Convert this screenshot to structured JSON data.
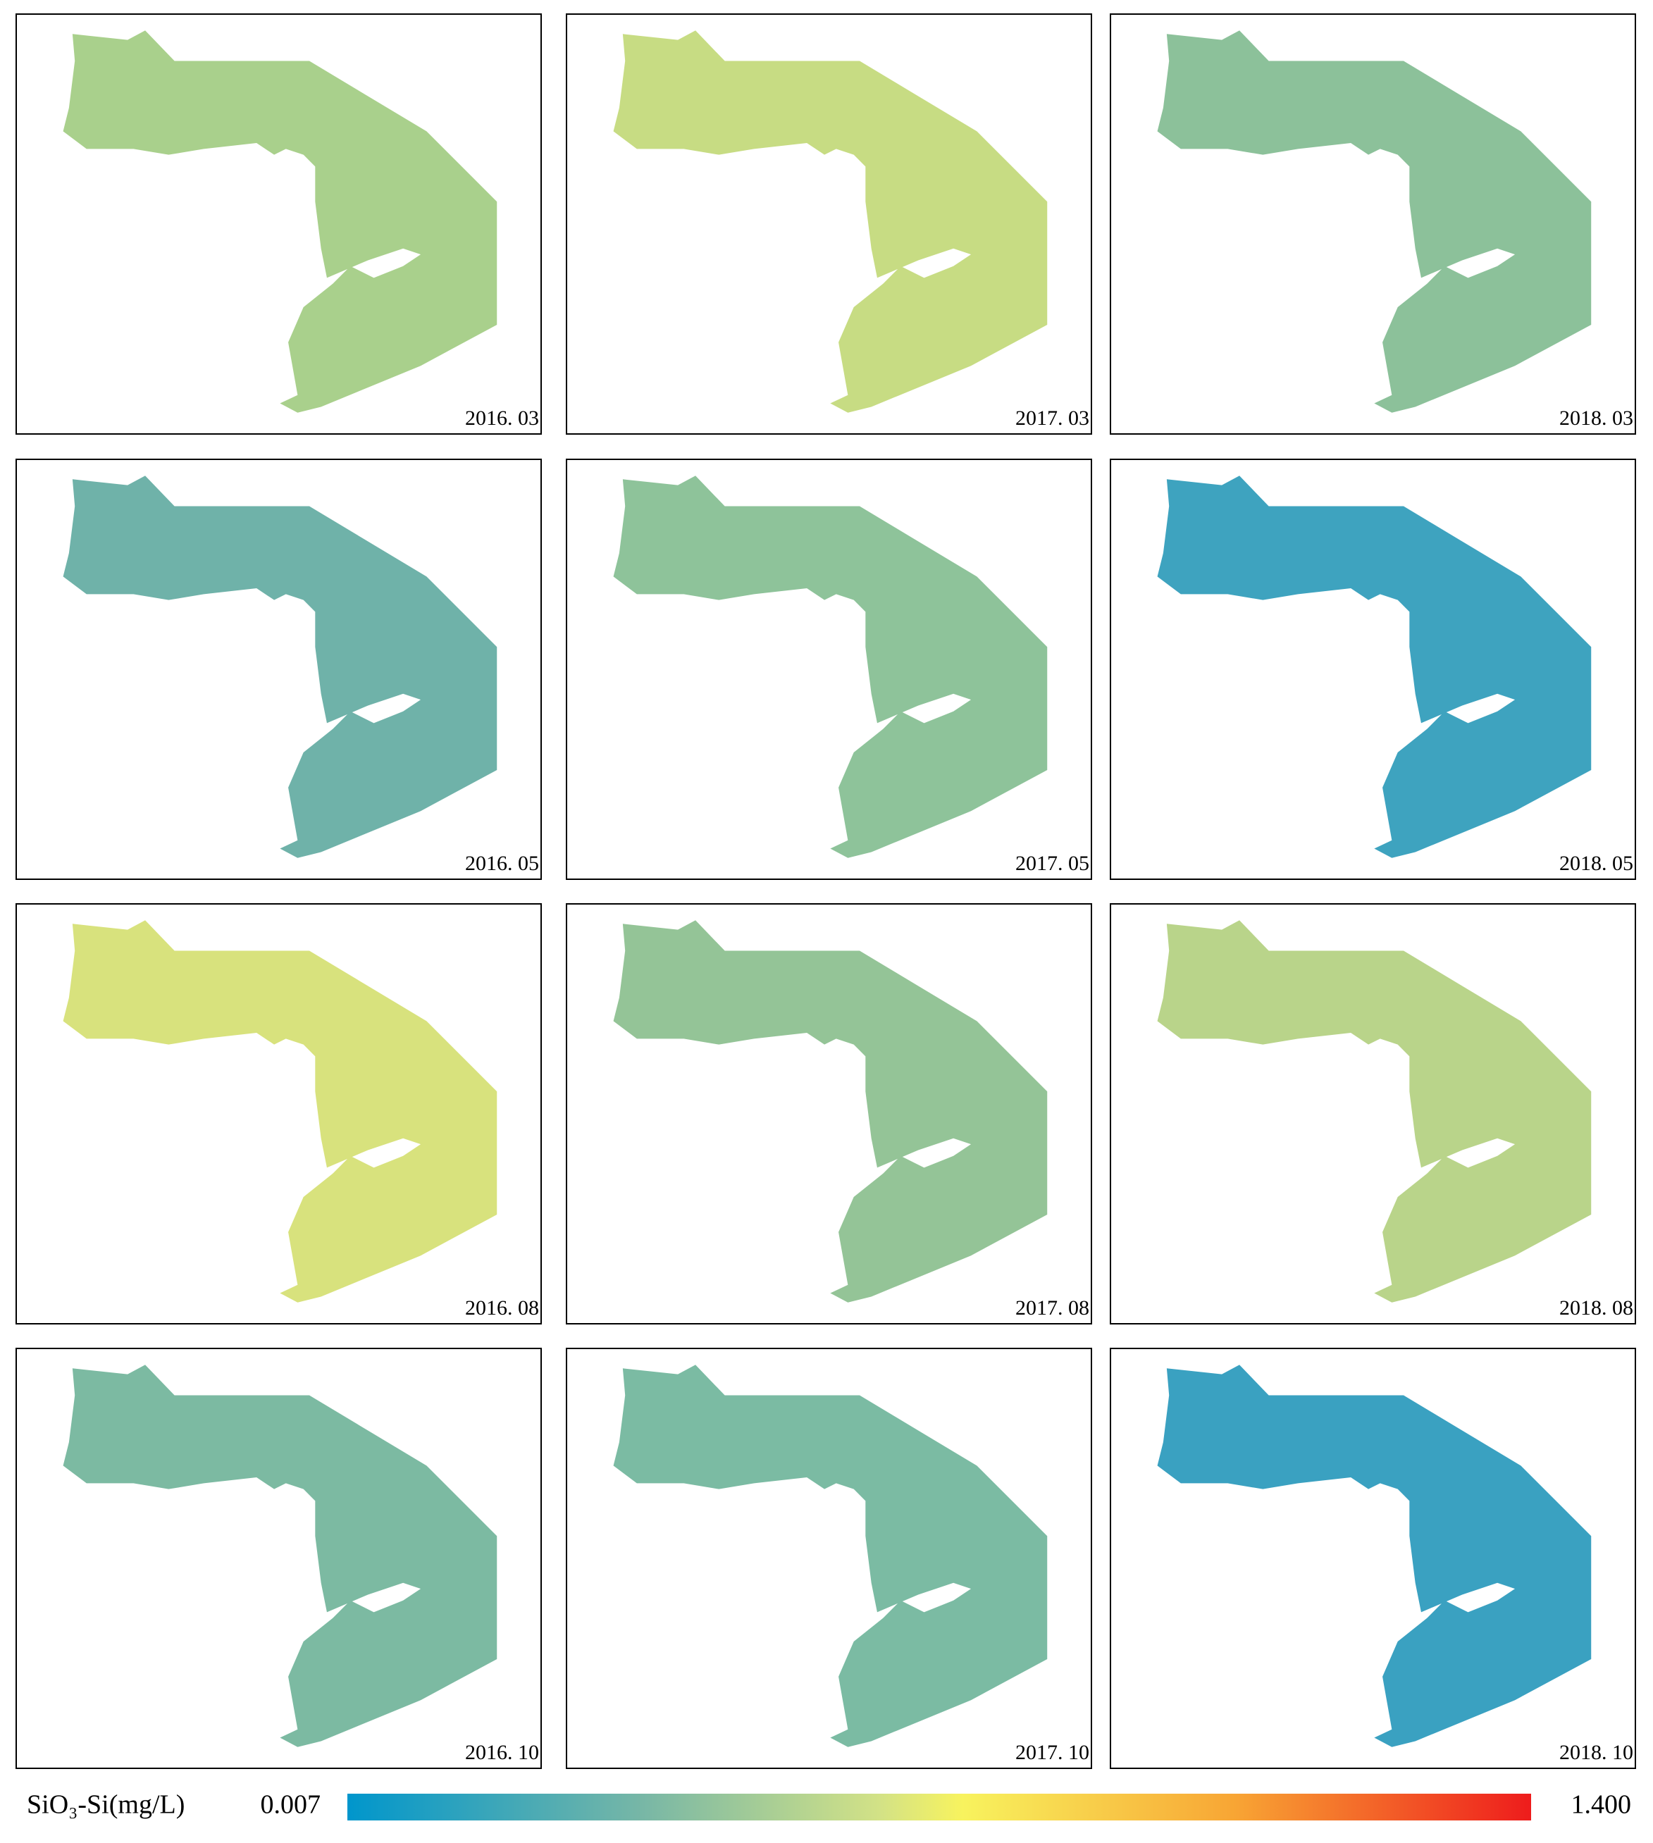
{
  "panels": [
    {
      "label": "2016. 03",
      "color": "#a9d08c"
    },
    {
      "label": "2017. 03",
      "color": "#c7dc83"
    },
    {
      "label": "2018. 03",
      "color": "#8cc19a"
    },
    {
      "label": "2016. 05",
      "color": "#6fb2a9"
    },
    {
      "label": "2017. 05",
      "color": "#8ec39a"
    },
    {
      "label": "2018. 05",
      "color": "#3ea3bf"
    },
    {
      "label": "2016. 08",
      "color": "#d8e27d"
    },
    {
      "label": "2017. 08",
      "color": "#94c497"
    },
    {
      "label": "2018. 08",
      "color": "#b9d48a"
    },
    {
      "label": "2016. 10",
      "color": "#7cbaa2"
    },
    {
      "label": "2017. 10",
      "color": "#7bbba3"
    },
    {
      "label": "2018. 10",
      "color": "#3aa1c1"
    }
  ],
  "legend": {
    "title": "SiO₃-Si(mg/L)",
    "min": 0.007,
    "max": {
      "value": 1.4,
      "label": "1.400"
    }
  }
}
